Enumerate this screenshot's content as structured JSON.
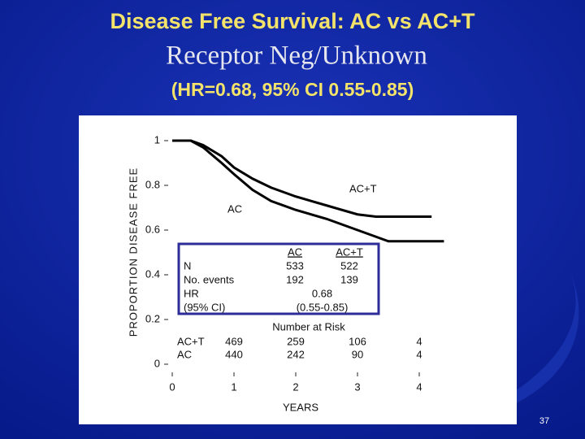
{
  "header": {
    "title": "Disease Free Survival: AC vs AC+T",
    "subtitle": "Receptor Neg/Unknown",
    "note": "(HR=0.68, 95% CI 0.55-0.85)"
  },
  "page_number": "37",
  "chart_data": {
    "type": "line",
    "xlabel": "YEARS",
    "ylabel": "PROPORTION DISEASE FREE",
    "x": [
      0,
      0.3,
      0.5,
      0.8,
      1,
      1.3,
      1.6,
      2,
      2.5,
      3,
      3.3,
      3.5,
      4.2,
      4.4
    ],
    "series": [
      {
        "name": "AC+T",
        "color": "#000000",
        "values": [
          1,
          1,
          0.98,
          0.93,
          0.88,
          0.83,
          0.79,
          0.75,
          0.71,
          0.67,
          0.66,
          0.66,
          0.66,
          null
        ]
      },
      {
        "name": "AC",
        "color": "#000000",
        "values": [
          1,
          1,
          0.97,
          0.9,
          0.85,
          0.78,
          0.73,
          0.69,
          0.65,
          0.6,
          0.57,
          0.55,
          0.55,
          0.55
        ]
      }
    ],
    "xlim": [
      0,
      4.5
    ],
    "ylim": [
      0,
      1
    ],
    "xticks": [
      0,
      1,
      2,
      3,
      4
    ],
    "yticks": [
      0,
      0.2,
      0.4,
      0.6,
      0.8,
      1
    ],
    "grid": false,
    "inset_table": {
      "columns": [
        "AC",
        "AC+T"
      ],
      "rows": [
        {
          "label": "N",
          "values": [
            "533",
            "522"
          ]
        },
        {
          "label": "No. events",
          "values": [
            "192",
            "139"
          ]
        },
        {
          "label": "HR",
          "values": [
            "0.68"
          ]
        },
        {
          "label": "(95% CI)",
          "values": [
            "(0.55-0.85)"
          ]
        }
      ]
    },
    "risk_table": {
      "title": "Number at Risk",
      "rows": [
        {
          "label": "AC+T",
          "values": [
            "469",
            "259",
            "106",
            "4"
          ]
        },
        {
          "label": "AC",
          "values": [
            "440",
            "242",
            "90",
            "4"
          ]
        }
      ]
    }
  }
}
